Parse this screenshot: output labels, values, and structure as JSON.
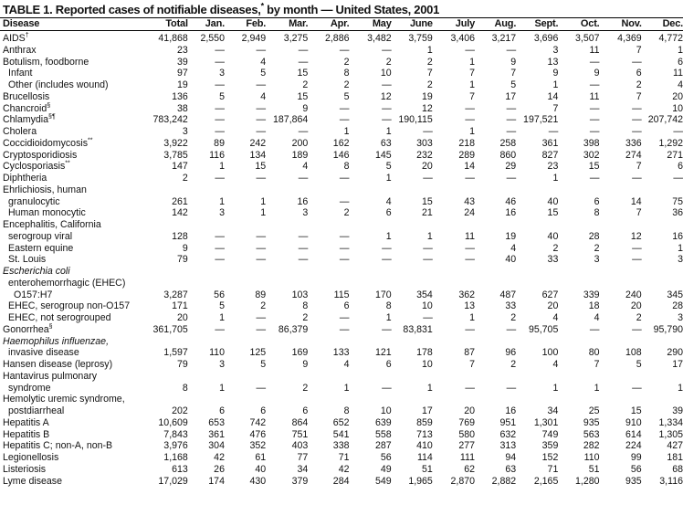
{
  "title": {
    "text": "TABLE 1. Reported cases of notifiable diseases,",
    "note": "*",
    "suffix": " by month — United States, 2001"
  },
  "columns": [
    "Disease",
    "Total",
    "Jan.",
    "Feb.",
    "Mar.",
    "Apr.",
    "May",
    "June",
    "July",
    "Aug.",
    "Sept.",
    "Oct.",
    "Nov.",
    "Dec."
  ],
  "rows": [
    {
      "label": "AIDS",
      "note": "†",
      "level": 0,
      "values": [
        "41,868",
        "2,550",
        "2,949",
        "3,275",
        "2,886",
        "3,482",
        "3,759",
        "3,406",
        "3,217",
        "3,696",
        "3,507",
        "4,369",
        "4,772"
      ]
    },
    {
      "label": "Anthrax",
      "level": 0,
      "values": [
        "23",
        "—",
        "—",
        "—",
        "—",
        "—",
        "1",
        "—",
        "—",
        "3",
        "11",
        "7",
        "1"
      ]
    },
    {
      "label": "Botulism, foodborne",
      "level": 0,
      "values": [
        "39",
        "—",
        "4",
        "—",
        "2",
        "2",
        "2",
        "1",
        "9",
        "13",
        "—",
        "—",
        "6"
      ]
    },
    {
      "label": "Infant",
      "level": 1,
      "values": [
        "97",
        "3",
        "5",
        "15",
        "8",
        "10",
        "7",
        "7",
        "7",
        "9",
        "9",
        "6",
        "11"
      ]
    },
    {
      "label": "Other (includes wound)",
      "level": 1,
      "values": [
        "19",
        "—",
        "—",
        "2",
        "2",
        "—",
        "2",
        "1",
        "5",
        "1",
        "—",
        "2",
        "4"
      ]
    },
    {
      "label": "Brucellosis",
      "level": 0,
      "values": [
        "136",
        "5",
        "4",
        "15",
        "5",
        "12",
        "19",
        "7",
        "17",
        "14",
        "11",
        "7",
        "20"
      ]
    },
    {
      "label": "Chancroid",
      "note": "§",
      "level": 0,
      "values": [
        "38",
        "—",
        "—",
        "9",
        "—",
        "—",
        "12",
        "—",
        "—",
        "7",
        "—",
        "—",
        "10"
      ]
    },
    {
      "label": "Chlamydia",
      "note": "§¶",
      "level": 0,
      "values": [
        "783,242",
        "—",
        "—",
        "187,864",
        "—",
        "—",
        "190,115",
        "—",
        "—",
        "197,521",
        "—",
        "—",
        "207,742"
      ]
    },
    {
      "label": "Cholera",
      "level": 0,
      "values": [
        "3",
        "—",
        "—",
        "—",
        "1",
        "1",
        "—",
        "1",
        "—",
        "—",
        "—",
        "—",
        "—"
      ]
    },
    {
      "label": "Coccidioidomycosis",
      "note": "**",
      "level": 0,
      "values": [
        "3,922",
        "89",
        "242",
        "200",
        "162",
        "63",
        "303",
        "218",
        "258",
        "361",
        "398",
        "336",
        "1,292"
      ]
    },
    {
      "label": "Cryptosporidiosis",
      "level": 0,
      "values": [
        "3,785",
        "116",
        "134",
        "189",
        "146",
        "145",
        "232",
        "289",
        "860",
        "827",
        "302",
        "274",
        "271"
      ]
    },
    {
      "label": "Cyclosporiasis",
      "note": "**",
      "level": 0,
      "values": [
        "147",
        "1",
        "15",
        "4",
        "8",
        "5",
        "20",
        "14",
        "29",
        "23",
        "15",
        "7",
        "6"
      ]
    },
    {
      "label": "Diphtheria",
      "level": 0,
      "values": [
        "2",
        "—",
        "—",
        "—",
        "—",
        "1",
        "—",
        "—",
        "—",
        "1",
        "—",
        "—",
        "—"
      ]
    },
    {
      "label": "Ehrlichiosis, human",
      "level": 0
    },
    {
      "label": "granulocytic",
      "level": 1,
      "values": [
        "261",
        "1",
        "1",
        "16",
        "—",
        "4",
        "15",
        "43",
        "46",
        "40",
        "6",
        "14",
        "75"
      ]
    },
    {
      "label": "Human monocytic",
      "level": 1,
      "values": [
        "142",
        "3",
        "1",
        "3",
        "2",
        "6",
        "21",
        "24",
        "16",
        "15",
        "8",
        "7",
        "36"
      ]
    },
    {
      "label": "Encephalitis, California",
      "level": 0
    },
    {
      "label": "serogroup viral",
      "level": 1,
      "values": [
        "128",
        "—",
        "—",
        "—",
        "—",
        "1",
        "1",
        "11",
        "19",
        "40",
        "28",
        "12",
        "16"
      ]
    },
    {
      "label": "Eastern equine",
      "level": 1,
      "values": [
        "9",
        "—",
        "—",
        "—",
        "—",
        "—",
        "—",
        "—",
        "4",
        "2",
        "2",
        "—",
        "1"
      ]
    },
    {
      "label": "St. Louis",
      "level": 1,
      "values": [
        "79",
        "—",
        "—",
        "—",
        "—",
        "—",
        "—",
        "—",
        "40",
        "33",
        "3",
        "—",
        "3"
      ]
    },
    {
      "label": "Escherichia coli",
      "level": 0,
      "italic": true
    },
    {
      "label": "enterohemorrhagic (EHEC)",
      "level": 1
    },
    {
      "label": "O157:H7",
      "level": 2,
      "values": [
        "3,287",
        "56",
        "89",
        "103",
        "115",
        "170",
        "354",
        "362",
        "487",
        "627",
        "339",
        "240",
        "345"
      ]
    },
    {
      "label": "EHEC, serogroup non-O157",
      "level": 1,
      "values": [
        "171",
        "5",
        "2",
        "8",
        "6",
        "8",
        "10",
        "13",
        "33",
        "20",
        "18",
        "20",
        "28"
      ]
    },
    {
      "label": "EHEC, not serogrouped",
      "level": 1,
      "values": [
        "20",
        "1",
        "—",
        "2",
        "—",
        "1",
        "—",
        "1",
        "2",
        "4",
        "4",
        "2",
        "3"
      ]
    },
    {
      "label": "Gonorrhea",
      "note": "§",
      "level": 0,
      "values": [
        "361,705",
        "—",
        "—",
        "86,379",
        "—",
        "—",
        "83,831",
        "—",
        "—",
        "95,705",
        "—",
        "—",
        "95,790"
      ]
    },
    {
      "label": "Haemophilus influenzae,",
      "level": 0,
      "italic": true
    },
    {
      "label": "invasive disease",
      "level": 1,
      "values": [
        "1,597",
        "110",
        "125",
        "169",
        "133",
        "121",
        "178",
        "87",
        "96",
        "100",
        "80",
        "108",
        "290"
      ]
    },
    {
      "label": "Hansen disease (leprosy)",
      "level": 0,
      "values": [
        "79",
        "3",
        "5",
        "9",
        "4",
        "6",
        "10",
        "7",
        "2",
        "4",
        "7",
        "5",
        "17"
      ]
    },
    {
      "label": "Hantavirus pulmonary",
      "level": 0
    },
    {
      "label": "syndrome",
      "level": 1,
      "values": [
        "8",
        "1",
        "—",
        "2",
        "1",
        "—",
        "1",
        "—",
        "—",
        "1",
        "1",
        "—",
        "1"
      ]
    },
    {
      "label": "Hemolytic uremic syndrome,",
      "level": 0
    },
    {
      "label": "postdiarrheal",
      "level": 1,
      "values": [
        "202",
        "6",
        "6",
        "6",
        "8",
        "10",
        "17",
        "20",
        "16",
        "34",
        "25",
        "15",
        "39"
      ]
    },
    {
      "label": "Hepatitis A",
      "level": 0,
      "values": [
        "10,609",
        "653",
        "742",
        "864",
        "652",
        "639",
        "859",
        "769",
        "951",
        "1,301",
        "935",
        "910",
        "1,334"
      ]
    },
    {
      "label": "Hepatitis B",
      "level": 0,
      "values": [
        "7,843",
        "361",
        "476",
        "751",
        "541",
        "558",
        "713",
        "580",
        "632",
        "749",
        "563",
        "614",
        "1,305"
      ]
    },
    {
      "label": "Hepatitis C; non-A, non-B",
      "level": 0,
      "values": [
        "3,976",
        "304",
        "352",
        "403",
        "338",
        "287",
        "410",
        "277",
        "313",
        "359",
        "282",
        "224",
        "427"
      ]
    },
    {
      "label": "Legionellosis",
      "level": 0,
      "values": [
        "1,168",
        "42",
        "61",
        "77",
        "71",
        "56",
        "114",
        "111",
        "94",
        "152",
        "110",
        "99",
        "181"
      ]
    },
    {
      "label": "Listeriosis",
      "level": 0,
      "values": [
        "613",
        "26",
        "40",
        "34",
        "42",
        "49",
        "51",
        "62",
        "63",
        "71",
        "51",
        "56",
        "68"
      ]
    },
    {
      "label": "Lyme disease",
      "level": 0,
      "values": [
        "17,029",
        "174",
        "430",
        "379",
        "284",
        "549",
        "1,965",
        "2,870",
        "2,882",
        "2,165",
        "1,280",
        "935",
        "3,116"
      ]
    }
  ]
}
